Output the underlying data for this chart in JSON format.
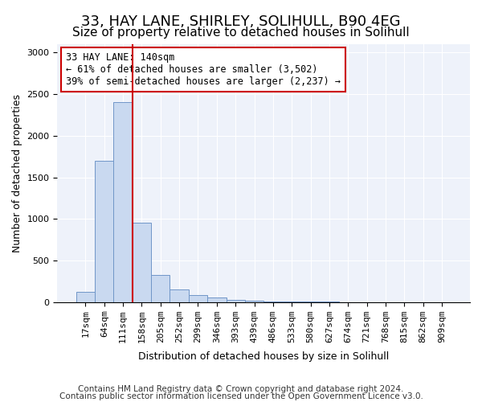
{
  "title1": "33, HAY LANE, SHIRLEY, SOLIHULL, B90 4EG",
  "title2": "Size of property relative to detached houses in Solihull",
  "xlabel": "Distribution of detached houses by size in Solihull",
  "ylabel": "Number of detached properties",
  "bar_values": [
    120,
    1700,
    2400,
    950,
    330,
    150,
    80,
    50,
    30,
    15,
    8,
    5,
    3,
    2,
    1,
    1,
    0,
    0,
    0,
    0
  ],
  "bin_labels": [
    "17sqm",
    "64sqm",
    "111sqm",
    "158sqm",
    "205sqm",
    "252sqm",
    "299sqm",
    "346sqm",
    "393sqm",
    "439sqm",
    "486sqm",
    "533sqm",
    "580sqm",
    "627sqm",
    "674sqm",
    "721sqm",
    "768sqm",
    "815sqm",
    "862sqm",
    "909sqm"
  ],
  "bar_color": "#c9d9f0",
  "bar_edge_color": "#7096c8",
  "vline_x_index": 2,
  "vline_color": "#cc0000",
  "annotation_text": "33 HAY LANE: 140sqm\n← 61% of detached houses are smaller (3,502)\n39% of semi-detached houses are larger (2,237) →",
  "annotation_box_color": "#ffffff",
  "annotation_box_edge": "#cc0000",
  "ylim": [
    0,
    3100
  ],
  "yticks": [
    0,
    500,
    1000,
    1500,
    2000,
    2500,
    3000
  ],
  "footer1": "Contains HM Land Registry data © Crown copyright and database right 2024.",
  "footer2": "Contains public sector information licensed under the Open Government Licence v3.0.",
  "bg_color": "#ffffff",
  "plot_bg_color": "#eef2fa",
  "grid_color": "#ffffff",
  "title1_fontsize": 13,
  "title2_fontsize": 11,
  "axis_label_fontsize": 9,
  "tick_fontsize": 8,
  "annotation_fontsize": 8.5,
  "footer_fontsize": 7.5
}
